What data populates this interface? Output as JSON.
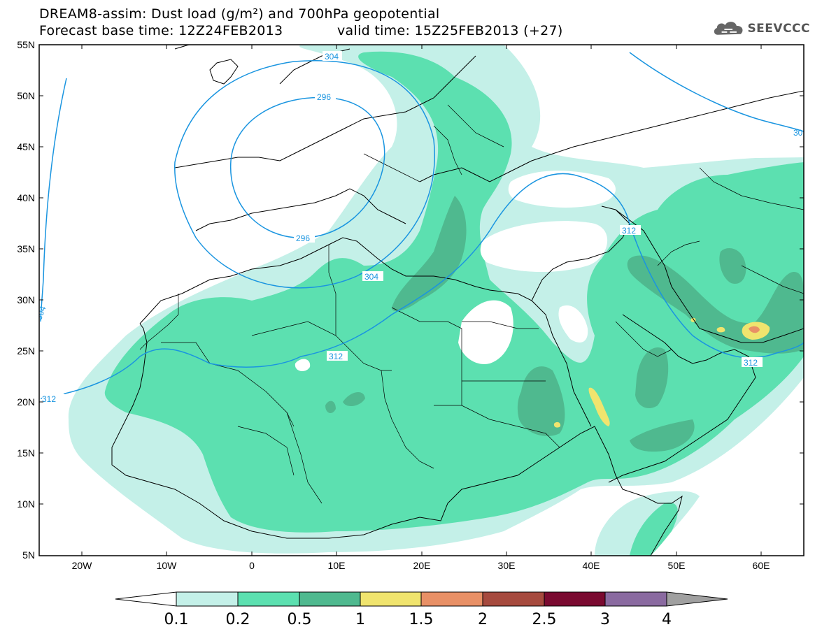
{
  "title": {
    "line1": "DREAM8-assim: Dust load (g/m²) and 700hPa geopotential",
    "line2_base": "Forecast base time: 12Z24FEB2013",
    "line2_valid": "valid time: 15Z25FEB2013 (+27)"
  },
  "logo": {
    "text": "SEEVCCC",
    "icon": "cloud-logo-icon"
  },
  "axes": {
    "lat_labels": [
      "55N",
      "50N",
      "45N",
      "40N",
      "35N",
      "30N",
      "25N",
      "20N",
      "15N",
      "10N",
      "5N"
    ],
    "lon_labels": [
      "20W",
      "10W",
      "0",
      "10E",
      "20E",
      "30E",
      "40E",
      "50E",
      "60E"
    ]
  },
  "geopotential_contours": {
    "color": "#1a95e0",
    "labels": [
      "304",
      "296",
      "296",
      "304",
      "312",
      "312",
      "312",
      "312",
      "304",
      "30"
    ]
  },
  "colorbar": {
    "labels": [
      "0.1",
      "0.2",
      "0.5",
      "1",
      "1.5",
      "2",
      "2.5",
      "3",
      "4"
    ],
    "colors": [
      "#c4f0e8",
      "#5ce0b0",
      "#4fb98f",
      "#f0e46e",
      "#e89066",
      "#a64a3e",
      "#7a0a30",
      "#8a6aa0",
      "#a0a0a0"
    ],
    "underflow_color": "#ffffff"
  },
  "dust_colors": {
    "level1": "#c4f0e8",
    "level2": "#5ce0b0",
    "level3": "#4fb98f",
    "level4": "#f0e46e",
    "level5": "#e89066",
    "level6": "#a64a3e"
  }
}
